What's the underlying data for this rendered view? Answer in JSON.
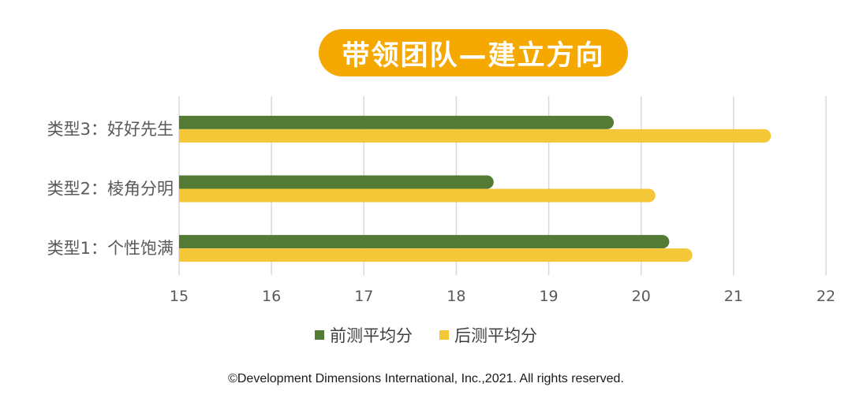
{
  "title": "带领团队—建立方向",
  "colors": {
    "title_bg": "#F5A800",
    "pre_series": "#537B35",
    "post_series": "#F4C738",
    "grid": "#D9D9D9",
    "text": "#595959"
  },
  "chart_data": {
    "type": "bar",
    "orientation": "horizontal",
    "categories": [
      "类型3：好好先生",
      "类型2：棱角分明",
      "类型1：个性饱满"
    ],
    "series": [
      {
        "name": "前测平均分",
        "values": [
          19.7,
          18.4,
          20.3
        ]
      },
      {
        "name": "后测平均分",
        "values": [
          21.4,
          20.15,
          20.55
        ]
      }
    ],
    "xlim": [
      15,
      22
    ],
    "xticks": [
      "15",
      "16",
      "17",
      "18",
      "19",
      "20",
      "21",
      "22"
    ],
    "grid": true,
    "legend_position": "bottom"
  },
  "footer": "©Development Dimensions International, Inc.,2021. All rights reserved."
}
